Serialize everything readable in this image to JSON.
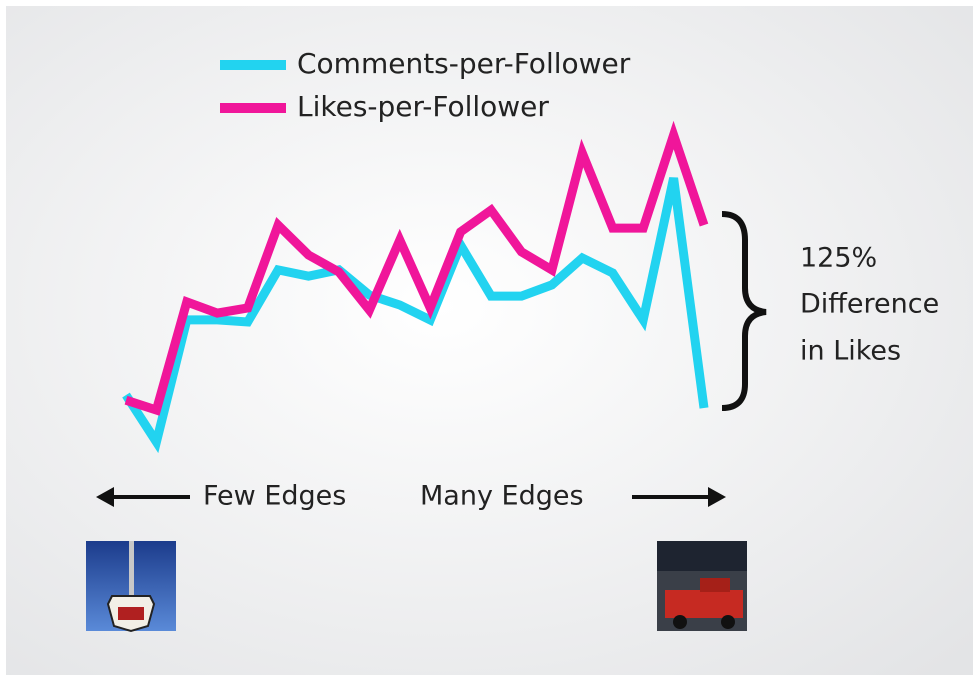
{
  "chart_data": {
    "type": "line",
    "categories": [
      null,
      null,
      null,
      null,
      null,
      null,
      null,
      null,
      null,
      null,
      null,
      null,
      null,
      null,
      null,
      null,
      null,
      null,
      null,
      null
    ],
    "series": [
      {
        "name": "Comments-per-Follower",
        "color": "#22d3f0",
        "values": [
          19.1,
          5.3,
          41.2,
          41.2,
          40.6,
          55.9,
          54.1,
          55.9,
          48.5,
          45.6,
          41.2,
          63.2,
          48.2,
          48.2,
          51.5,
          59.4,
          55.0,
          41.2,
          82.9,
          15.3
        ]
      },
      {
        "name": "Likes-per-Follower",
        "color": "#f0169a",
        "values": [
          17.6,
          14.7,
          46.5,
          43.2,
          44.7,
          69.1,
          60.3,
          55.3,
          44.1,
          64.7,
          44.7,
          67.1,
          73.5,
          61.2,
          55.9,
          90.3,
          68.2,
          68.2,
          95.6,
          69.1
        ]
      }
    ],
    "ylim": [
      0,
      100
    ],
    "annotation": [
      "125%",
      "Difference",
      "in Likes"
    ],
    "axis_notes": [
      "Few Edges",
      "Many Edges"
    ]
  }
}
